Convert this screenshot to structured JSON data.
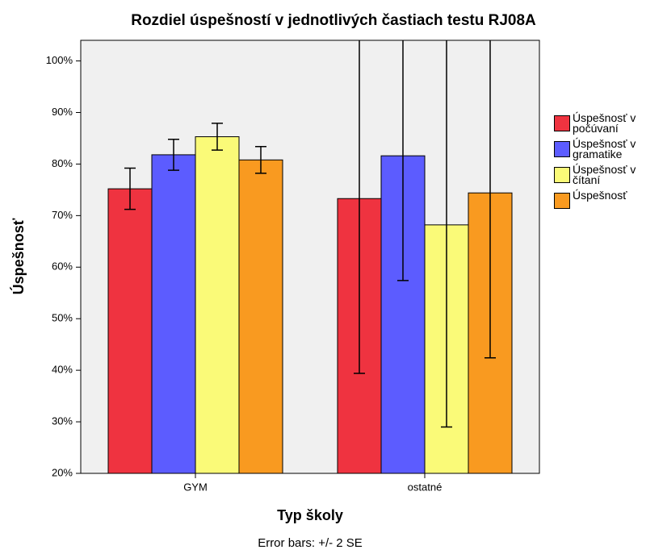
{
  "chart_data": {
    "type": "bar",
    "title": "Rozdiel úspešností v jednotlivých častiach testu RJ08A",
    "x_label": "Typ školy",
    "y_label": "Úspešnosť",
    "footnote": "Error bars: +/- 2 SE",
    "categories": [
      "GYM",
      "ostatné"
    ],
    "series": [
      {
        "name": "Úspešnosť v počúvaní",
        "color": "#ef3340",
        "values": [
          75.2,
          73.3
        ],
        "errors": [
          4.0,
          33.9
        ]
      },
      {
        "name": "Úspešnosť v gramatike",
        "color": "#5c5cff",
        "values": [
          81.8,
          81.6
        ],
        "errors": [
          3.0,
          24.2
        ]
      },
      {
        "name": "Úspešnosť v čítaní",
        "color": "#fafa78",
        "values": [
          85.3,
          68.2
        ],
        "errors": [
          2.6,
          39.2
        ]
      },
      {
        "name": "Úspešnosť",
        "color": "#f99a20",
        "values": [
          80.8,
          74.4
        ],
        "errors": [
          2.6,
          32.0
        ]
      }
    ],
    "ylim": [
      20,
      104
    ],
    "yticks": [
      {
        "value": 20,
        "label": "20%"
      },
      {
        "value": 30,
        "label": "30%"
      },
      {
        "value": 40,
        "label": "40%"
      },
      {
        "value": 50,
        "label": "50%"
      },
      {
        "value": 60,
        "label": "60%"
      },
      {
        "value": 70,
        "label": "70%"
      },
      {
        "value": 80,
        "label": "80%"
      },
      {
        "value": 90,
        "label": "90%"
      },
      {
        "value": 100,
        "label": "100%"
      }
    ],
    "plot_background": "#f0f0f0"
  }
}
